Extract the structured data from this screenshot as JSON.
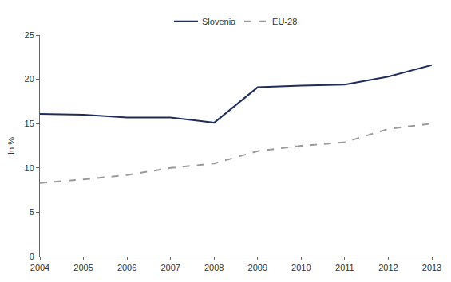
{
  "chart_data": {
    "type": "line",
    "categories": [
      "2004",
      "2005",
      "2006",
      "2007",
      "2008",
      "2009",
      "2010",
      "2011",
      "2012",
      "2013"
    ],
    "series": [
      {
        "name": "Slovenia",
        "color": "#1f2d5a",
        "line_style": "solid",
        "values": [
          16.1,
          16.0,
          15.7,
          15.7,
          15.1,
          19.1,
          19.3,
          19.4,
          20.3,
          21.6
        ]
      },
      {
        "name": "EU-28",
        "color": "#9a9a9a",
        "line_style": "dashed",
        "values": [
          8.3,
          8.7,
          9.2,
          10.0,
          10.5,
          11.9,
          12.5,
          12.9,
          14.4,
          15.0
        ]
      }
    ],
    "y_label": "In %",
    "ylim": [
      0,
      25
    ],
    "yticks": [
      0,
      5,
      10,
      15,
      20,
      25
    ],
    "grid": false,
    "legend": "top"
  }
}
